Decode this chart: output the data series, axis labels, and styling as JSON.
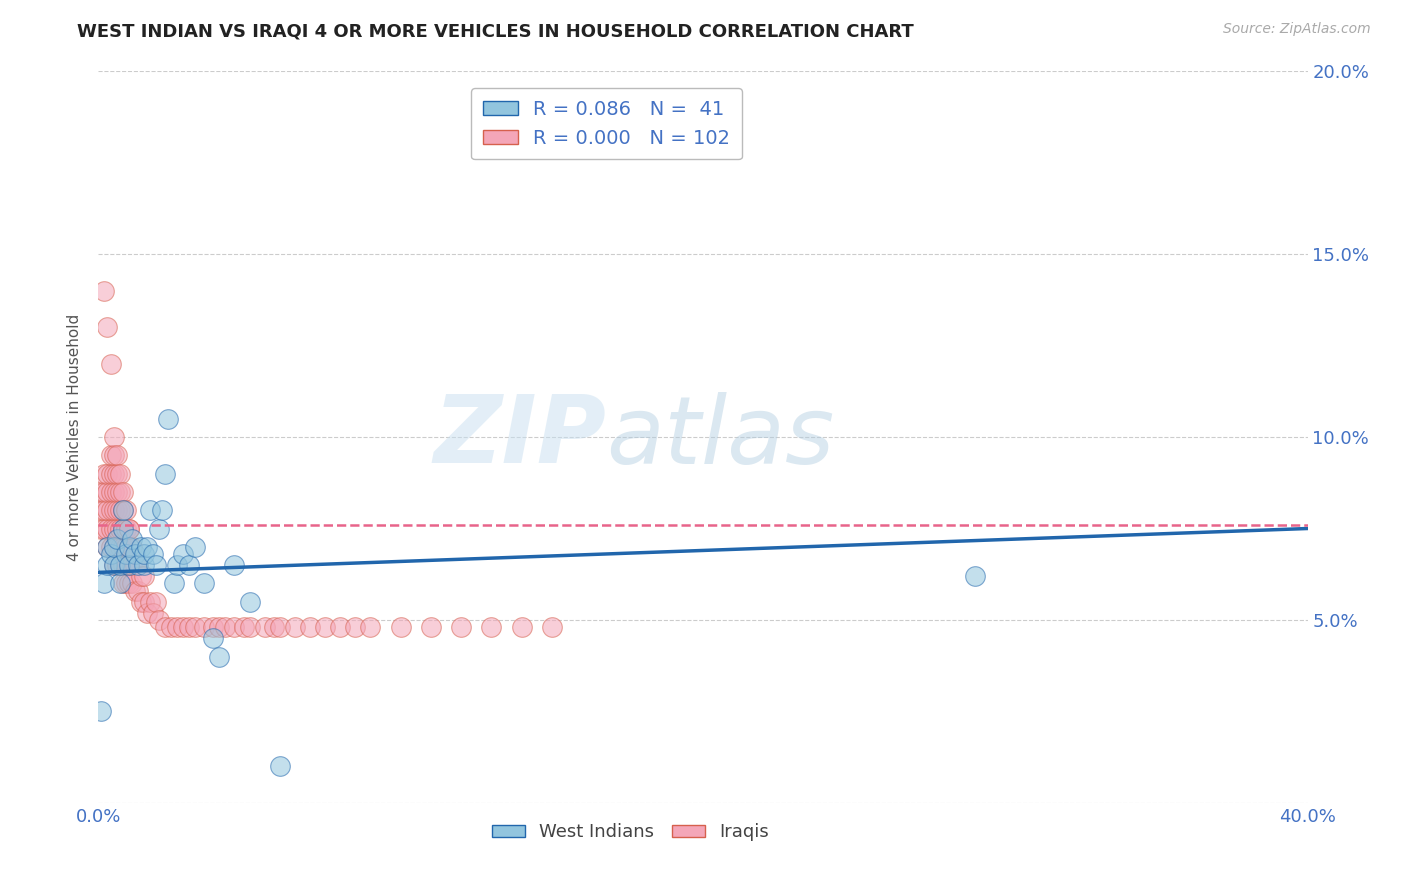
{
  "title": "WEST INDIAN VS IRAQI 4 OR MORE VEHICLES IN HOUSEHOLD CORRELATION CHART",
  "source": "Source: ZipAtlas.com",
  "ylabel": "4 or more Vehicles in Household",
  "xmin": 0.0,
  "xmax": 0.4,
  "ymin": 0.0,
  "ymax": 0.2,
  "legend_blue_r": "R = 0.086",
  "legend_blue_n": "N =  41",
  "legend_pink_r": "R = 0.000",
  "legend_pink_n": "N = 102",
  "watermark_zip": "ZIP",
  "watermark_atlas": "atlas",
  "blue_fill": "#92c5de",
  "pink_fill": "#f4a6b8",
  "blue_edge": "#2166ac",
  "pink_edge": "#d6604d",
  "blue_line": "#2166ac",
  "pink_line": "#e8648a",
  "axis_color": "#4472c4",
  "tick_color": "#4472c4",
  "west_indians_x": [
    0.001,
    0.002,
    0.003,
    0.003,
    0.004,
    0.005,
    0.005,
    0.006,
    0.007,
    0.007,
    0.008,
    0.008,
    0.009,
    0.01,
    0.01,
    0.011,
    0.012,
    0.013,
    0.014,
    0.015,
    0.015,
    0.016,
    0.017,
    0.018,
    0.019,
    0.02,
    0.021,
    0.022,
    0.023,
    0.025,
    0.026,
    0.028,
    0.03,
    0.032,
    0.035,
    0.038,
    0.04,
    0.045,
    0.05,
    0.06,
    0.29
  ],
  "west_indians_y": [
    0.025,
    0.06,
    0.065,
    0.07,
    0.068,
    0.065,
    0.07,
    0.072,
    0.06,
    0.065,
    0.075,
    0.08,
    0.068,
    0.065,
    0.07,
    0.072,
    0.068,
    0.065,
    0.07,
    0.065,
    0.068,
    0.07,
    0.08,
    0.068,
    0.065,
    0.075,
    0.08,
    0.09,
    0.105,
    0.06,
    0.065,
    0.068,
    0.065,
    0.07,
    0.06,
    0.045,
    0.04,
    0.065,
    0.055,
    0.01,
    0.062
  ],
  "iraqis_x": [
    0.001,
    0.001,
    0.001,
    0.002,
    0.002,
    0.002,
    0.002,
    0.003,
    0.003,
    0.003,
    0.003,
    0.003,
    0.004,
    0.004,
    0.004,
    0.004,
    0.004,
    0.004,
    0.005,
    0.005,
    0.005,
    0.005,
    0.005,
    0.005,
    0.005,
    0.006,
    0.006,
    0.006,
    0.006,
    0.006,
    0.006,
    0.007,
    0.007,
    0.007,
    0.007,
    0.007,
    0.008,
    0.008,
    0.008,
    0.008,
    0.008,
    0.009,
    0.009,
    0.009,
    0.009,
    0.01,
    0.01,
    0.01,
    0.01,
    0.011,
    0.011,
    0.011,
    0.012,
    0.012,
    0.013,
    0.013,
    0.014,
    0.014,
    0.015,
    0.015,
    0.016,
    0.017,
    0.018,
    0.019,
    0.02,
    0.022,
    0.024,
    0.026,
    0.028,
    0.03,
    0.032,
    0.035,
    0.038,
    0.04,
    0.042,
    0.045,
    0.048,
    0.05,
    0.055,
    0.058,
    0.06,
    0.065,
    0.07,
    0.075,
    0.08,
    0.085,
    0.09,
    0.1,
    0.11,
    0.12,
    0.13,
    0.14,
    0.15,
    0.002,
    0.003,
    0.004,
    0.005,
    0.006,
    0.007,
    0.008,
    0.009,
    0.01
  ],
  "iraqis_y": [
    0.075,
    0.08,
    0.085,
    0.075,
    0.08,
    0.085,
    0.09,
    0.07,
    0.075,
    0.08,
    0.085,
    0.09,
    0.07,
    0.075,
    0.08,
    0.085,
    0.09,
    0.095,
    0.065,
    0.07,
    0.075,
    0.08,
    0.085,
    0.09,
    0.095,
    0.065,
    0.07,
    0.075,
    0.08,
    0.085,
    0.09,
    0.065,
    0.07,
    0.075,
    0.08,
    0.085,
    0.06,
    0.065,
    0.07,
    0.075,
    0.08,
    0.06,
    0.065,
    0.07,
    0.075,
    0.06,
    0.065,
    0.07,
    0.075,
    0.06,
    0.065,
    0.07,
    0.058,
    0.065,
    0.058,
    0.065,
    0.055,
    0.062,
    0.055,
    0.062,
    0.052,
    0.055,
    0.052,
    0.055,
    0.05,
    0.048,
    0.048,
    0.048,
    0.048,
    0.048,
    0.048,
    0.048,
    0.048,
    0.048,
    0.048,
    0.048,
    0.048,
    0.048,
    0.048,
    0.048,
    0.048,
    0.048,
    0.048,
    0.048,
    0.048,
    0.048,
    0.048,
    0.048,
    0.048,
    0.048,
    0.048,
    0.048,
    0.048,
    0.14,
    0.13,
    0.12,
    0.1,
    0.095,
    0.09,
    0.085,
    0.08,
    0.075
  ],
  "blue_line_x0": 0.0,
  "blue_line_x1": 0.4,
  "blue_line_y0": 0.063,
  "blue_line_y1": 0.075,
  "pink_line_x0": 0.0,
  "pink_line_x1": 0.4,
  "pink_line_y0": 0.076,
  "pink_line_y1": 0.076
}
